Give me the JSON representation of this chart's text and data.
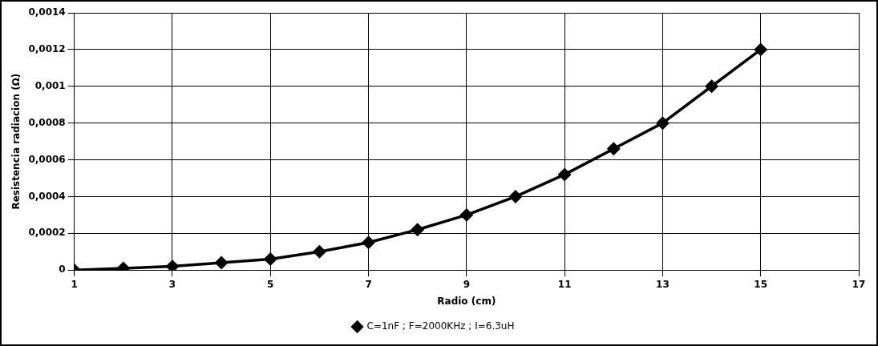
{
  "chart_data": {
    "type": "line",
    "xlabel": "Radio (cm)",
    "ylabel": "Resistencia radiacion (Ω)",
    "x": [
      1,
      2,
      3,
      4,
      5,
      6,
      7,
      8,
      9,
      10,
      11,
      12,
      13,
      14,
      15
    ],
    "series": [
      {
        "name": "C=1nF ; F=2000KHz ; I=6.3uH",
        "color": "#000000",
        "values": [
          0.0,
          1e-05,
          2e-05,
          4e-05,
          6e-05,
          0.0001,
          0.00015,
          0.00022,
          0.0003,
          0.0004,
          0.00052,
          0.00066,
          0.0008,
          0.001,
          0.0012
        ]
      }
    ],
    "xlim": [
      1,
      17
    ],
    "xticks": [
      1,
      3,
      5,
      7,
      9,
      11,
      13,
      15,
      17
    ],
    "ylim": [
      0,
      0.0014
    ],
    "yticks": [
      {
        "value": 0,
        "label": "0"
      },
      {
        "value": 0.0002,
        "label": "0,0002"
      },
      {
        "value": 0.0004,
        "label": "0,0004"
      },
      {
        "value": 0.0006,
        "label": "0,0006"
      },
      {
        "value": 0.0008,
        "label": "0,0008"
      },
      {
        "value": 0.001,
        "label": "0,001"
      },
      {
        "value": 0.0012,
        "label": "0,0012"
      },
      {
        "value": 0.0014,
        "label": "0,0014"
      }
    ],
    "grid": true,
    "legend": "bottom",
    "marker": "diamond",
    "line_style": "solid"
  }
}
